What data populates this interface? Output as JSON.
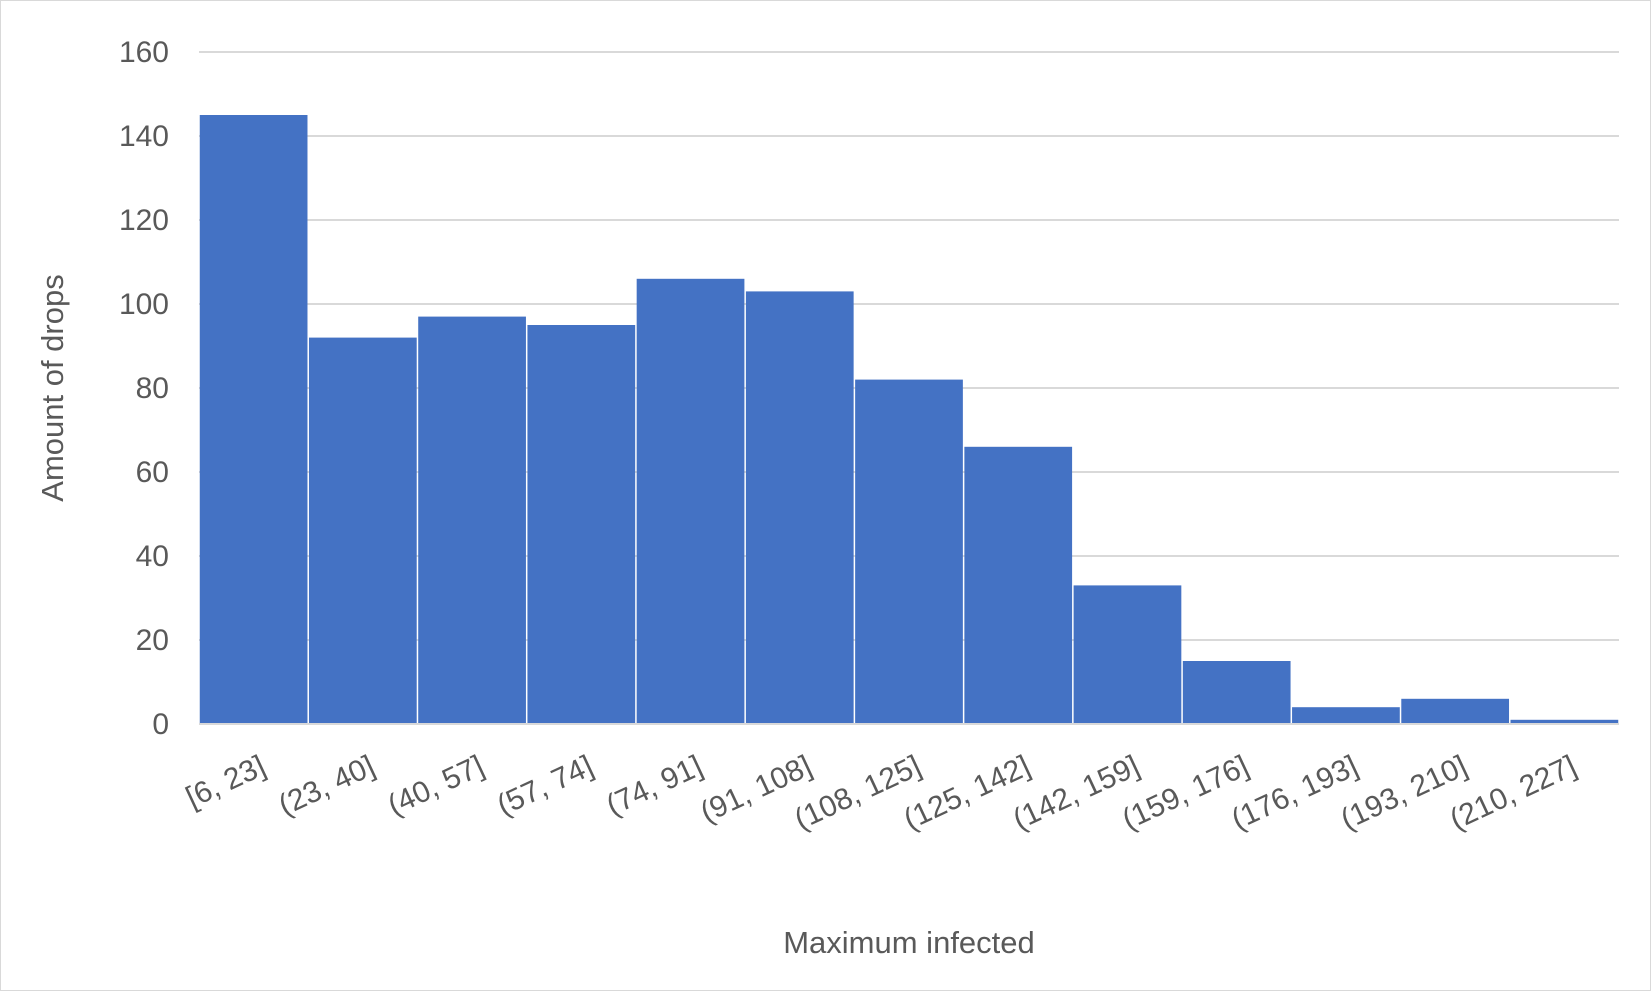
{
  "chart_data": {
    "type": "bar",
    "categories": [
      "[6, 23]",
      "(23, 40]",
      "(40, 57]",
      "(57, 74]",
      "(74, 91]",
      "(91, 108]",
      "(108, 125]",
      "(125, 142]",
      "(142, 159]",
      "(159, 176]",
      "(176, 193]",
      "(193, 210]",
      "(210, 227]"
    ],
    "values": [
      145,
      92,
      97,
      95,
      106,
      103,
      82,
      66,
      33,
      15,
      4,
      6,
      1
    ],
    "title": "",
    "xlabel": "Maximum infected",
    "ylabel": "Amount of drops",
    "ylim": [
      0,
      160
    ],
    "yticks": [
      "0",
      "20",
      "40",
      "60",
      "80",
      "100",
      "120",
      "140",
      "160"
    ],
    "grid": "horizontal",
    "legend": "none",
    "bar_color": "#4472c4",
    "grid_color": "#d9d9d9",
    "text_color": "#595959"
  }
}
